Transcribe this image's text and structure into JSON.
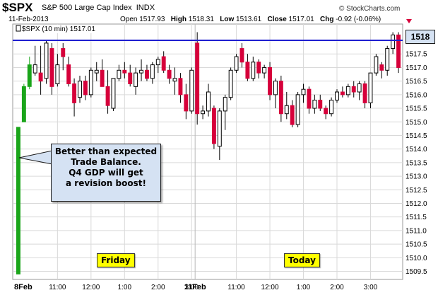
{
  "header": {
    "symbol": "$SPX",
    "index_name": "S&P 500 Large Cap Index",
    "exchange": "INDX",
    "date": "11-Feb-2013",
    "open_label": "Open",
    "open": "1517.93",
    "high_label": "High",
    "high": "1518.31",
    "low_label": "Low",
    "low": "1513.61",
    "close_label": "Close",
    "close": "1517.01",
    "chg_label": "Chg",
    "chg": "-0.92 (-0.06%)",
    "brand": "© StockCharts.com",
    "series_label": "$SPX (10 min) 1517.01"
  },
  "annotation": {
    "lines": [
      "Better than expected",
      "Trade Balance.",
      "Q4 GDP will get",
      "a revision boost!"
    ]
  },
  "day_labels": {
    "friday": "Friday",
    "today": "Today"
  },
  "price_tag": "1518",
  "colors": {
    "up": "#1aa51a",
    "down": "#d6003a",
    "neutral": "#000000",
    "hline": "#1f1fd0",
    "grid": "#d9d9d9",
    "callout_bg": "#d5e2f3",
    "tag_bg": "#ffff00"
  },
  "chart_data": {
    "type": "candlestick",
    "title": "$SPX S&P 500 Large Cap Index",
    "interval": "10 min",
    "ylim": [
      1509.2,
      1518.6
    ],
    "y_ticks": [
      1509.5,
      1510.0,
      1510.5,
      1511.0,
      1511.5,
      1512.0,
      1512.5,
      1513.0,
      1513.5,
      1514.0,
      1514.5,
      1515.0,
      1515.5,
      1516.0,
      1516.5,
      1517.0,
      1517.5
    ],
    "x_tick_labels": [
      "8Feb",
      "11:00",
      "12:00",
      "1:00",
      "2:00",
      "3:00",
      "11Feb",
      "11:00",
      "12:00",
      "1:00",
      "2:00",
      "3:00"
    ],
    "day_separator_label": "11Feb",
    "horizontal_line": 1518.0,
    "candles": [
      {
        "o": 1509.4,
        "h": 1514.8,
        "l": 1509.4,
        "c": 1514.8,
        "k": "up"
      },
      {
        "o": 1515.0,
        "h": 1516.4,
        "l": 1515.0,
        "c": 1516.3,
        "k": "up"
      },
      {
        "o": 1516.3,
        "h": 1517.4,
        "l": 1516.2,
        "c": 1517.1,
        "k": "up"
      },
      {
        "o": 1517.1,
        "h": 1517.8,
        "l": 1516.7,
        "c": 1516.8,
        "k": "neutral"
      },
      {
        "o": 1516.8,
        "h": 1517.8,
        "l": 1516.0,
        "c": 1516.5,
        "k": "down"
      },
      {
        "o": 1516.6,
        "h": 1518.0,
        "l": 1516.4,
        "c": 1517.9,
        "k": "neutral"
      },
      {
        "o": 1517.7,
        "h": 1517.9,
        "l": 1516.0,
        "c": 1516.3,
        "k": "down"
      },
      {
        "o": 1516.4,
        "h": 1517.5,
        "l": 1516.3,
        "c": 1517.1,
        "k": "neutral"
      },
      {
        "o": 1517.7,
        "h": 1517.9,
        "l": 1516.9,
        "c": 1517.4,
        "k": "down"
      },
      {
        "o": 1517.1,
        "h": 1517.4,
        "l": 1516.3,
        "c": 1516.4,
        "k": "down"
      },
      {
        "o": 1516.4,
        "h": 1516.6,
        "l": 1515.2,
        "c": 1515.7,
        "k": "down"
      },
      {
        "o": 1515.9,
        "h": 1516.7,
        "l": 1515.7,
        "c": 1516.5,
        "k": "neutral"
      },
      {
        "o": 1516.5,
        "h": 1516.7,
        "l": 1515.8,
        "c": 1516.0,
        "k": "down"
      },
      {
        "o": 1516.0,
        "h": 1517.0,
        "l": 1515.9,
        "c": 1516.9,
        "k": "neutral"
      },
      {
        "o": 1516.8,
        "h": 1517.2,
        "l": 1516.5,
        "c": 1516.9,
        "k": "neutral"
      },
      {
        "o": 1516.9,
        "h": 1517.3,
        "l": 1516.3,
        "c": 1516.3,
        "k": "down"
      },
      {
        "o": 1516.3,
        "h": 1516.9,
        "l": 1515.3,
        "c": 1515.6,
        "k": "down"
      },
      {
        "o": 1515.5,
        "h": 1516.6,
        "l": 1515.4,
        "c": 1516.6,
        "k": "neutral"
      },
      {
        "o": 1516.6,
        "h": 1517.1,
        "l": 1516.5,
        "c": 1516.9,
        "k": "neutral"
      },
      {
        "o": 1516.9,
        "h": 1517.2,
        "l": 1516.6,
        "c": 1516.8,
        "k": "down"
      },
      {
        "o": 1516.8,
        "h": 1517.1,
        "l": 1516.3,
        "c": 1516.4,
        "k": "down"
      },
      {
        "o": 1516.3,
        "h": 1517.0,
        "l": 1516.0,
        "c": 1516.8,
        "k": "neutral"
      },
      {
        "o": 1516.8,
        "h": 1517.3,
        "l": 1516.5,
        "c": 1516.9,
        "k": "neutral"
      },
      {
        "o": 1516.9,
        "h": 1517.1,
        "l": 1516.5,
        "c": 1516.6,
        "k": "down"
      },
      {
        "o": 1516.6,
        "h": 1517.2,
        "l": 1516.4,
        "c": 1517.1,
        "k": "neutral"
      },
      {
        "o": 1517.1,
        "h": 1517.4,
        "l": 1516.8,
        "c": 1517.3,
        "k": "neutral"
      },
      {
        "o": 1517.4,
        "h": 1517.6,
        "l": 1516.8,
        "c": 1516.9,
        "k": "down"
      },
      {
        "o": 1516.9,
        "h": 1517.1,
        "l": 1516.4,
        "c": 1516.6,
        "k": "down"
      },
      {
        "o": 1516.5,
        "h": 1517.0,
        "l": 1516.0,
        "c": 1516.6,
        "k": "neutral"
      },
      {
        "o": 1516.6,
        "h": 1516.8,
        "l": 1515.7,
        "c": 1516.0,
        "k": "down"
      },
      {
        "o": 1516.0,
        "h": 1516.4,
        "l": 1515.1,
        "c": 1515.4,
        "k": "down"
      },
      {
        "o": 1515.4,
        "h": 1517.0,
        "l": 1515.3,
        "c": 1516.9,
        "k": "neutral"
      },
      {
        "o": 1517.9,
        "h": 1518.3,
        "l": 1514.9,
        "c": 1515.3,
        "k": "down"
      },
      {
        "o": 1515.3,
        "h": 1515.6,
        "l": 1515.1,
        "c": 1515.4,
        "k": "neutral"
      },
      {
        "o": 1515.4,
        "h": 1516.4,
        "l": 1515.2,
        "c": 1516.1,
        "k": "neutral"
      },
      {
        "o": 1515.5,
        "h": 1515.6,
        "l": 1514.0,
        "c": 1514.2,
        "k": "down"
      },
      {
        "o": 1514.1,
        "h": 1515.5,
        "l": 1513.6,
        "c": 1515.4,
        "k": "neutral"
      },
      {
        "o": 1515.4,
        "h": 1516.0,
        "l": 1514.7,
        "c": 1515.9,
        "k": "neutral"
      },
      {
        "o": 1515.9,
        "h": 1517.0,
        "l": 1515.8,
        "c": 1516.9,
        "k": "neutral"
      },
      {
        "o": 1516.9,
        "h": 1517.5,
        "l": 1516.8,
        "c": 1517.4,
        "k": "neutral"
      },
      {
        "o": 1517.7,
        "h": 1517.9,
        "l": 1517.0,
        "c": 1517.2,
        "k": "down"
      },
      {
        "o": 1517.2,
        "h": 1517.5,
        "l": 1516.5,
        "c": 1516.6,
        "k": "down"
      },
      {
        "o": 1516.6,
        "h": 1517.4,
        "l": 1516.5,
        "c": 1517.2,
        "k": "neutral"
      },
      {
        "o": 1517.2,
        "h": 1517.3,
        "l": 1516.6,
        "c": 1516.8,
        "k": "down"
      },
      {
        "o": 1516.8,
        "h": 1517.1,
        "l": 1516.6,
        "c": 1517.0,
        "k": "neutral"
      },
      {
        "o": 1517.0,
        "h": 1517.2,
        "l": 1515.8,
        "c": 1516.0,
        "k": "down"
      },
      {
        "o": 1516.0,
        "h": 1516.6,
        "l": 1515.5,
        "c": 1516.5,
        "k": "neutral"
      },
      {
        "o": 1516.5,
        "h": 1516.7,
        "l": 1515.0,
        "c": 1515.3,
        "k": "down"
      },
      {
        "o": 1515.3,
        "h": 1516.1,
        "l": 1515.1,
        "c": 1515.6,
        "k": "neutral"
      },
      {
        "o": 1515.6,
        "h": 1515.8,
        "l": 1514.8,
        "c": 1514.9,
        "k": "down"
      },
      {
        "o": 1514.9,
        "h": 1516.1,
        "l": 1514.8,
        "c": 1516.0,
        "k": "neutral"
      },
      {
        "o": 1516.0,
        "h": 1516.4,
        "l": 1515.7,
        "c": 1516.2,
        "k": "neutral"
      },
      {
        "o": 1516.2,
        "h": 1516.3,
        "l": 1515.3,
        "c": 1515.5,
        "k": "down"
      },
      {
        "o": 1515.5,
        "h": 1516.0,
        "l": 1515.3,
        "c": 1515.8,
        "k": "neutral"
      },
      {
        "o": 1515.8,
        "h": 1516.0,
        "l": 1515.4,
        "c": 1515.5,
        "k": "down"
      },
      {
        "o": 1515.5,
        "h": 1515.6,
        "l": 1515.1,
        "c": 1515.3,
        "k": "down"
      },
      {
        "o": 1515.3,
        "h": 1515.9,
        "l": 1515.2,
        "c": 1515.8,
        "k": "neutral"
      },
      {
        "o": 1515.8,
        "h": 1516.2,
        "l": 1515.7,
        "c": 1516.1,
        "k": "neutral"
      },
      {
        "o": 1516.1,
        "h": 1516.3,
        "l": 1515.9,
        "c": 1516.0,
        "k": "down"
      },
      {
        "o": 1516.0,
        "h": 1516.4,
        "l": 1515.9,
        "c": 1516.3,
        "k": "neutral"
      },
      {
        "o": 1516.3,
        "h": 1516.5,
        "l": 1515.9,
        "c": 1516.1,
        "k": "down"
      },
      {
        "o": 1516.1,
        "h": 1516.5,
        "l": 1515.8,
        "c": 1516.4,
        "k": "neutral"
      },
      {
        "o": 1516.4,
        "h": 1516.5,
        "l": 1515.5,
        "c": 1515.7,
        "k": "down"
      },
      {
        "o": 1515.7,
        "h": 1516.8,
        "l": 1515.5,
        "c": 1516.8,
        "k": "neutral"
      },
      {
        "o": 1516.8,
        "h": 1517.5,
        "l": 1516.7,
        "c": 1517.4,
        "k": "neutral"
      },
      {
        "o": 1517.1,
        "h": 1517.2,
        "l": 1516.6,
        "c": 1516.9,
        "k": "down"
      },
      {
        "o": 1516.9,
        "h": 1517.8,
        "l": 1516.7,
        "c": 1517.7,
        "k": "neutral"
      },
      {
        "o": 1517.7,
        "h": 1518.3,
        "l": 1517.5,
        "c": 1518.2,
        "k": "neutral"
      },
      {
        "o": 1518.2,
        "h": 1518.3,
        "l": 1516.8,
        "c": 1517.0,
        "k": "down"
      }
    ]
  }
}
